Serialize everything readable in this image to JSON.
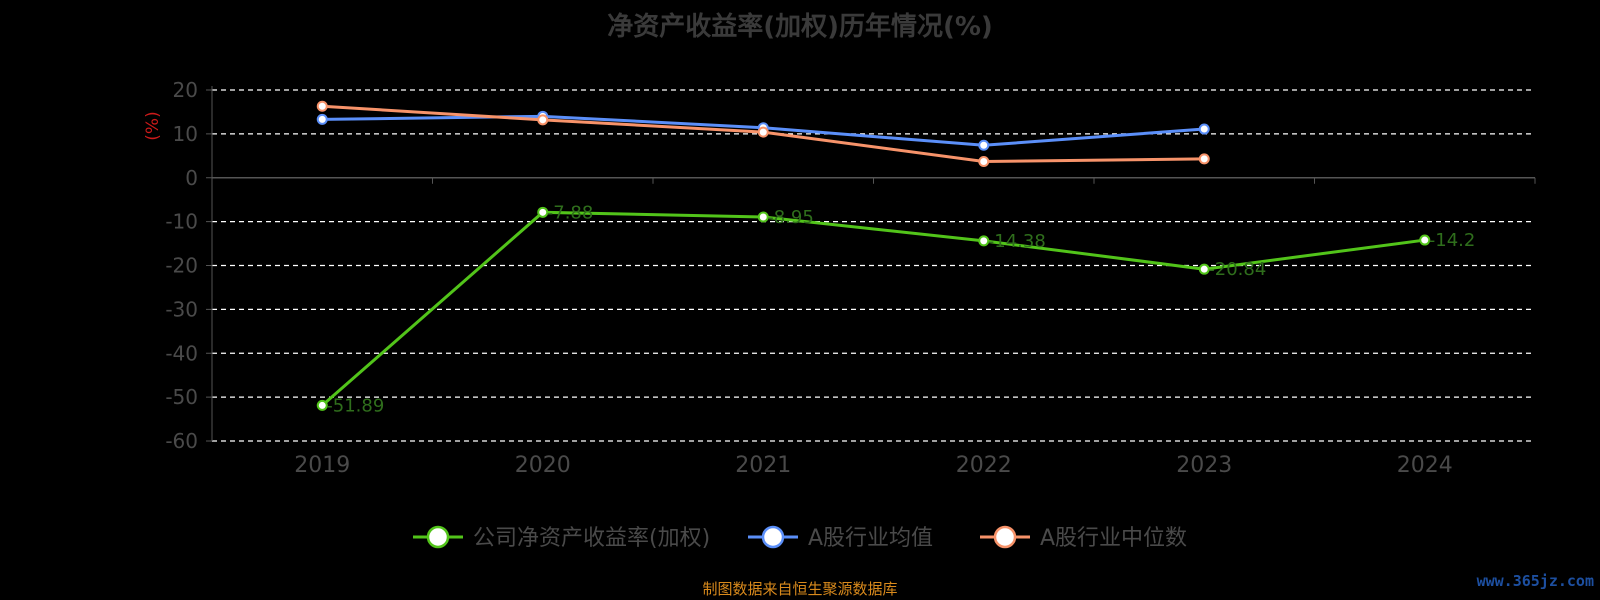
{
  "chart_data": {
    "type": "line",
    "title": "净资产收益率(加权)历年情况(%)",
    "ylabel": "(%)",
    "categories": [
      "2019",
      "2020",
      "2021",
      "2022",
      "2023",
      "2024"
    ],
    "ylim": [
      -60,
      20
    ],
    "yticks": [
      20,
      10,
      0,
      -10,
      -20,
      -30,
      -40,
      -50,
      -60
    ],
    "grid": true,
    "legend_position": "bottom",
    "series": [
      {
        "name": "公司净资产收益率(加权)",
        "color": "#52c41a",
        "values": [
          -51.89,
          -7.88,
          -8.95,
          -14.38,
          -20.84,
          -14.2
        ],
        "labels": [
          "-51.89",
          "-7.88",
          "-8.95",
          "-14.38",
          "-20.84",
          "-14.2"
        ]
      },
      {
        "name": "A股行业均值",
        "color": "#5b8ff9",
        "values": [
          13.3,
          14.0,
          11.4,
          7.4,
          11.1,
          null
        ]
      },
      {
        "name": "A股行业中位数",
        "color": "#f7936a",
        "values": [
          16.3,
          13.2,
          10.4,
          3.7,
          4.3,
          null
        ]
      }
    ]
  },
  "footer": "制图数据来自恒生聚源数据库",
  "watermark": "www.365jz.com"
}
